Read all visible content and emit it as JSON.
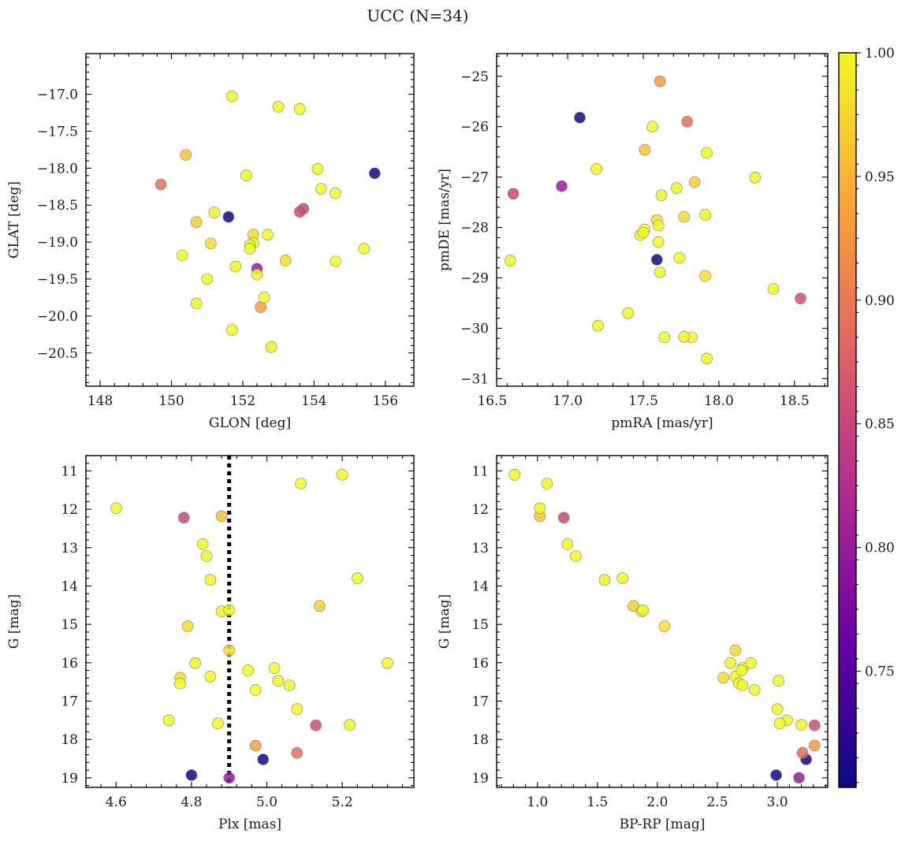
{
  "figure_title": "UCC (N=34)",
  "colors": {
    "colormap_stops": [
      "#0d0887",
      "#6a00a8",
      "#b12a90",
      "#e16462",
      "#fca636",
      "#f0f921"
    ],
    "reference_line": "#000000"
  },
  "colorbar": {
    "min": 0.703,
    "max": 1.0,
    "ticks": [
      0.75,
      0.8,
      0.85,
      0.9,
      0.95,
      1.0
    ],
    "tick_labels": [
      "0.75",
      "0.80",
      "0.85",
      "0.90",
      "0.95",
      "1.00"
    ]
  },
  "stars": [
    {
      "glon": 151.7,
      "glat": -17.03,
      "pmra": 17.4,
      "pmde": -29.7,
      "plx": 4.6,
      "gmag": 11.97,
      "bprp": 1.02,
      "p": 1.0
    },
    {
      "glon": 153.0,
      "glat": -17.17,
      "pmra": 17.82,
      "pmde": -30.18,
      "plx": 5.2,
      "gmag": 11.1,
      "bprp": 0.81,
      "p": 1.0
    },
    {
      "glon": 153.6,
      "glat": -17.2,
      "pmra": 17.92,
      "pmde": -26.52,
      "plx": 5.09,
      "gmag": 11.33,
      "bprp": 1.08,
      "p": 1.0
    },
    {
      "glon": 150.4,
      "glat": -17.82,
      "pmra": 17.51,
      "pmde": -26.46,
      "plx": 4.88,
      "gmag": 12.18,
      "bprp": 1.02,
      "p": 0.96
    },
    {
      "glon": 154.1,
      "glat": -18.01,
      "pmra": 18.24,
      "pmde": -27.01,
      "plx": 4.83,
      "gmag": 12.91,
      "bprp": 1.25,
      "p": 1.0
    },
    {
      "glon": 152.1,
      "glat": -18.1,
      "pmra": 17.19,
      "pmde": -26.84,
      "plx": 4.84,
      "gmag": 13.22,
      "bprp": 1.32,
      "p": 1.0
    },
    {
      "glon": 154.2,
      "glat": -18.28,
      "pmra": 17.72,
      "pmde": -27.22,
      "plx": 4.85,
      "gmag": 13.84,
      "bprp": 1.56,
      "p": 1.0
    },
    {
      "glon": 154.6,
      "glat": -18.34,
      "pmra": 17.62,
      "pmde": -27.36,
      "plx": 5.24,
      "gmag": 13.8,
      "bprp": 1.71,
      "p": 1.0
    },
    {
      "glon": 150.7,
      "glat": -18.73,
      "pmra": 17.84,
      "pmde": -27.1,
      "plx": 5.14,
      "gmag": 14.52,
      "bprp": 1.8,
      "p": 0.97
    },
    {
      "glon": 151.2,
      "glat": -18.6,
      "pmra": 17.91,
      "pmde": -27.75,
      "plx": 4.88,
      "gmag": 14.66,
      "bprp": 1.87,
      "p": 1.0
    },
    {
      "glon": 152.7,
      "glat": -18.9,
      "pmra": 17.6,
      "pmde": -27.96,
      "plx": 4.9,
      "gmag": 14.63,
      "bprp": 1.88,
      "p": 1.0
    },
    {
      "glon": 151.1,
      "glat": -19.02,
      "pmra": 17.77,
      "pmde": -27.79,
      "plx": 4.79,
      "gmag": 15.05,
      "bprp": 2.06,
      "p": 0.98
    },
    {
      "glon": 152.3,
      "glat": -18.9,
      "pmra": 17.59,
      "pmde": -27.85,
      "plx": 4.9,
      "gmag": 15.68,
      "bprp": 2.65,
      "p": 0.98
    },
    {
      "glon": 152.3,
      "glat": -19.01,
      "pmra": 17.6,
      "pmde": -28.29,
      "plx": 4.81,
      "gmag": 16.01,
      "bprp": 2.61,
      "p": 1.0
    },
    {
      "glon": 152.2,
      "glat": -19.04,
      "pmra": 17.51,
      "pmde": -28.04,
      "plx": 5.02,
      "gmag": 16.14,
      "bprp": 2.71,
      "p": 1.0
    },
    {
      "glon": 152.2,
      "glat": -19.09,
      "pmra": 17.48,
      "pmde": -28.15,
      "plx": 5.32,
      "gmag": 16.01,
      "bprp": 2.78,
      "p": 1.0
    },
    {
      "glon": 153.2,
      "glat": -19.25,
      "pmra": 17.91,
      "pmde": -28.96,
      "plx": 4.77,
      "gmag": 16.39,
      "bprp": 2.55,
      "p": 0.98
    },
    {
      "glon": 154.6,
      "glat": -19.26,
      "pmra": 17.74,
      "pmde": -28.6,
      "plx": 4.85,
      "gmag": 16.36,
      "bprp": 2.65,
      "p": 1.0
    },
    {
      "glon": 150.3,
      "glat": -19.18,
      "pmra": 17.61,
      "pmde": -28.89,
      "plx": 5.03,
      "gmag": 16.47,
      "bprp": 3.01,
      "p": 1.0
    },
    {
      "glon": 155.4,
      "glat": -19.09,
      "pmra": 18.36,
      "pmde": -29.22,
      "plx": 4.77,
      "gmag": 16.54,
      "bprp": 2.68,
      "p": 1.0
    },
    {
      "glon": 151.8,
      "glat": -19.33,
      "pmra": 16.62,
      "pmde": -28.66,
      "plx": 5.06,
      "gmag": 16.59,
      "bprp": 2.71,
      "p": 1.0
    },
    {
      "glon": 152.4,
      "glat": -19.44,
      "pmra": 17.2,
      "pmde": -29.95,
      "plx": 4.97,
      "gmag": 16.71,
      "bprp": 2.81,
      "p": 1.0
    },
    {
      "glon": 152.6,
      "glat": -19.75,
      "pmra": 17.64,
      "pmde": -30.18,
      "plx": 5.08,
      "gmag": 17.21,
      "bprp": 3.0,
      "p": 1.0
    },
    {
      "glon": 150.7,
      "glat": -19.83,
      "pmra": 17.92,
      "pmde": -30.6,
      "plx": 4.74,
      "gmag": 17.5,
      "bprp": 3.08,
      "p": 1.0
    },
    {
      "glon": 151.7,
      "glat": -20.19,
      "pmra": 17.77,
      "pmde": -30.17,
      "plx": 4.87,
      "gmag": 17.58,
      "bprp": 3.02,
      "p": 1.0
    },
    {
      "glon": 152.8,
      "glat": -20.42,
      "pmra": 17.56,
      "pmde": -26.0,
      "plx": 5.22,
      "gmag": 17.62,
      "bprp": 3.2,
      "p": 1.0
    },
    {
      "glon": 152.5,
      "glat": -19.88,
      "pmra": 17.61,
      "pmde": -25.1,
      "plx": 4.97,
      "gmag": 18.16,
      "bprp": 3.31,
      "p": 0.93
    },
    {
      "glon": 149.7,
      "glat": -18.22,
      "pmra": 17.79,
      "pmde": -25.9,
      "plx": 5.08,
      "gmag": 18.35,
      "bprp": 3.21,
      "p": 0.89
    },
    {
      "glon": 153.6,
      "glat": -18.59,
      "pmra": 18.54,
      "pmde": -29.41,
      "plx": 5.13,
      "gmag": 17.63,
      "bprp": 3.31,
      "p": 0.86
    },
    {
      "glon": 153.7,
      "glat": -18.55,
      "pmra": 16.64,
      "pmde": -27.33,
      "plx": 4.78,
      "gmag": 12.22,
      "bprp": 1.22,
      "p": 0.85
    },
    {
      "glon": 152.4,
      "glat": -19.36,
      "pmra": 16.96,
      "pmde": -27.18,
      "plx": 4.9,
      "gmag": 19.0,
      "bprp": 3.18,
      "p": 0.8
    },
    {
      "glon": 151.6,
      "glat": -18.66,
      "pmra": 17.08,
      "pmde": -25.82,
      "plx": 4.8,
      "gmag": 18.93,
      "bprp": 2.99,
      "p": 0.703
    },
    {
      "glon": 155.7,
      "glat": -18.07,
      "pmra": 17.59,
      "pmde": -28.64,
      "plx": 4.99,
      "gmag": 18.52,
      "bprp": 3.24,
      "p": 0.703
    },
    {
      "glon": 151.0,
      "glat": -19.5,
      "pmra": 17.5,
      "pmde": -28.1,
      "plx": 4.95,
      "gmag": 16.2,
      "bprp": 2.7,
      "p": 1.0
    }
  ],
  "chart_data": [
    {
      "id": "glon-glat",
      "type": "scatter",
      "xfield": "glon",
      "yfield": "glat",
      "xlabel": "GLON [deg]",
      "ylabel": "GLAT [deg]",
      "xlim": [
        147.6,
        156.8
      ],
      "ylim": [
        -20.95,
        -16.45
      ],
      "invert_y": false,
      "xticks": [
        148,
        150,
        152,
        154,
        156
      ],
      "xtick_labels": [
        "148",
        "150",
        "152",
        "154",
        "156"
      ],
      "yticks": [
        -17.0,
        -17.5,
        -18.0,
        -18.5,
        -19.0,
        -19.5,
        -20.0,
        -20.5
      ],
      "ytick_labels": [
        "−17.0",
        "−17.5",
        "−18.0",
        "−18.5",
        "−19.0",
        "−19.5",
        "−20.0",
        "−20.5"
      ]
    },
    {
      "id": "pmra-pmde",
      "type": "scatter",
      "xfield": "pmra",
      "yfield": "pmde",
      "xlabel": "pmRA [mas/yr]",
      "ylabel": "pmDE [mas/yr]",
      "xlim": [
        16.53,
        18.72
      ],
      "ylim": [
        -31.15,
        -24.55
      ],
      "invert_y": false,
      "xticks": [
        16.5,
        17.0,
        17.5,
        18.0,
        18.5
      ],
      "xtick_labels": [
        "16.5",
        "17.0",
        "17.5",
        "18.0",
        "18.5"
      ],
      "yticks": [
        -25,
        -26,
        -27,
        -28,
        -29,
        -30,
        -31
      ],
      "ytick_labels": [
        "−25",
        "−26",
        "−27",
        "−28",
        "−29",
        "−30",
        "−31"
      ]
    },
    {
      "id": "plx-g",
      "type": "scatter",
      "xfield": "plx",
      "yfield": "gmag",
      "xlabel": "Plx [mas]",
      "ylabel": "G [mag]",
      "xlim": [
        4.52,
        5.39
      ],
      "ylim": [
        10.6,
        19.25
      ],
      "invert_y": true,
      "xticks": [
        4.6,
        4.8,
        5.0,
        5.2
      ],
      "xtick_labels": [
        "4.6",
        "4.8",
        "5.0",
        "5.2"
      ],
      "yticks": [
        11,
        12,
        13,
        14,
        15,
        16,
        17,
        18,
        19
      ],
      "ytick_labels": [
        "11",
        "12",
        "13",
        "14",
        "15",
        "16",
        "17",
        "18",
        "19"
      ],
      "reference_line_x": 4.9
    },
    {
      "id": "bprp-g",
      "type": "scatter",
      "xfield": "bprp",
      "yfield": "gmag",
      "xlabel": "BP-RP [mag]",
      "ylabel": "G [mag]",
      "xlim": [
        0.66,
        3.42
      ],
      "ylim": [
        10.6,
        19.25
      ],
      "invert_y": true,
      "xticks": [
        1.0,
        1.5,
        2.0,
        2.5,
        3.0
      ],
      "xtick_labels": [
        "1.0",
        "1.5",
        "2.0",
        "2.5",
        "3.0"
      ],
      "yticks": [
        11,
        12,
        13,
        14,
        15,
        16,
        17,
        18,
        19
      ],
      "ytick_labels": [
        "11",
        "12",
        "13",
        "14",
        "15",
        "16",
        "17",
        "18",
        "19"
      ]
    }
  ]
}
